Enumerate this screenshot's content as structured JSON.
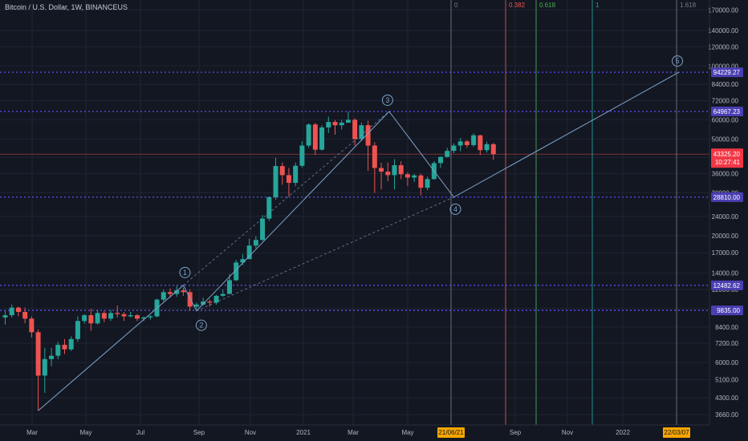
{
  "symbol_title": "Bitcoin / U.S. Dollar, 1W, BINANCEUS",
  "colors": {
    "background": "#131722",
    "grid": "#1f2433",
    "bull": "#26a69a",
    "bear": "#ef5350",
    "wave_line": "#7ea3c9",
    "level_line": "#5b4cf0",
    "level_label_bg": "#4a3fb3",
    "axis_text": "#b2b5be",
    "price_label_bg": "#f23645",
    "date_label_bg": "#f7a600"
  },
  "chart_data": {
    "type": "candlestick",
    "log_scale": true,
    "ylim": [
      3500,
      180000
    ],
    "y_ticks": [
      "170000.00",
      "140000.00",
      "120000.00",
      "100000.00",
      "84000.00",
      "72000.00",
      "60000.00",
      "50000.00",
      "42000.00",
      "36000.00",
      "30000.00",
      "24000.00",
      "20000.00",
      "17000.00",
      "14000.00",
      "12000.00",
      "10000.00",
      "8400.00",
      "7200.00",
      "6000.00",
      "5100.00",
      "4300.00",
      "3660.00"
    ],
    "x_ticks": [
      "Mar",
      "May",
      "Jul",
      "Sep",
      "Nov",
      "2021",
      "Mar",
      "May",
      "Sep",
      "Nov",
      "2022"
    ],
    "candles": [
      [
        9200,
        9800,
        8600,
        9400
      ],
      [
        9400,
        10400,
        9200,
        10100
      ],
      [
        10100,
        10200,
        9300,
        9700
      ],
      [
        9700,
        10100,
        8700,
        9100
      ],
      [
        9100,
        9300,
        7600,
        8000
      ],
      [
        8000,
        8200,
        3800,
        5300
      ],
      [
        5300,
        6900,
        4500,
        6200
      ],
      [
        6200,
        6900,
        5800,
        6400
      ],
      [
        6400,
        7300,
        6200,
        7100
      ],
      [
        7100,
        7500,
        6500,
        6800
      ],
      [
        6800,
        7700,
        6700,
        7500
      ],
      [
        7500,
        9300,
        7300,
        8900
      ],
      [
        8900,
        9500,
        8700,
        9400
      ],
      [
        9400,
        10000,
        8100,
        8700
      ],
      [
        8700,
        9900,
        8600,
        9600
      ],
      [
        9600,
        9800,
        8800,
        9100
      ],
      [
        9100,
        9900,
        8900,
        9600
      ],
      [
        9600,
        10300,
        9200,
        9500
      ],
      [
        9500,
        9700,
        8900,
        9300
      ],
      [
        9300,
        9700,
        9200,
        9400
      ],
      [
        9400,
        9500,
        8900,
        9100
      ],
      [
        9100,
        9300,
        8900,
        9200
      ],
      [
        9200,
        9400,
        9000,
        9300
      ],
      [
        9300,
        11000,
        9200,
        10900
      ],
      [
        10900,
        12000,
        10700,
        11700
      ],
      [
        11700,
        12100,
        11100,
        11500
      ],
      [
        11500,
        12400,
        11200,
        11900
      ],
      [
        11900,
        12200,
        11300,
        11700
      ],
      [
        11700,
        12000,
        9800,
        10200
      ],
      [
        10200,
        10600,
        10000,
        10400
      ],
      [
        10400,
        11100,
        10300,
        10700
      ],
      [
        10700,
        10900,
        10200,
        10600
      ],
      [
        10600,
        11400,
        10400,
        11300
      ],
      [
        11300,
        12000,
        11200,
        11500
      ],
      [
        11500,
        13900,
        11500,
        13100
      ],
      [
        13100,
        15900,
        13000,
        15500
      ],
      [
        15500,
        16800,
        15100,
        16000
      ],
      [
        16000,
        19400,
        16000,
        18200
      ],
      [
        18200,
        19900,
        17700,
        19200
      ],
      [
        19200,
        24300,
        19000,
        23500
      ],
      [
        23500,
        29000,
        23000,
        28800
      ],
      [
        28800,
        41900,
        28100,
        38700
      ],
      [
        38700,
        40000,
        32400,
        35500
      ],
      [
        35500,
        38000,
        29000,
        33000
      ],
      [
        33000,
        40000,
        32000,
        38800
      ],
      [
        38800,
        49000,
        38200,
        47000
      ],
      [
        47000,
        58000,
        46000,
        57400
      ],
      [
        57400,
        58300,
        43000,
        45200
      ],
      [
        45200,
        57000,
        44800,
        55800
      ],
      [
        55800,
        61800,
        53000,
        58800
      ],
      [
        58800,
        59900,
        52100,
        57000
      ],
      [
        57000,
        60000,
        54700,
        58400
      ],
      [
        58400,
        64800,
        58200,
        60000
      ],
      [
        60000,
        61000,
        47000,
        50000
      ],
      [
        50000,
        58500,
        49000,
        57000
      ],
      [
        57000,
        59500,
        37000,
        47000
      ],
      [
        47000,
        48500,
        30000,
        38000
      ],
      [
        38000,
        39900,
        31000,
        36700
      ],
      [
        36700,
        40000,
        33500,
        35500
      ],
      [
        35500,
        41300,
        31000,
        39000
      ],
      [
        39000,
        40500,
        34200,
        35800
      ],
      [
        35800,
        36500,
        32000,
        34700
      ],
      [
        34700,
        35900,
        33300,
        35400
      ],
      [
        35400,
        36000,
        29300,
        31500
      ],
      [
        31500,
        35000,
        30800,
        34200
      ],
      [
        34200,
        40500,
        34000,
        39800
      ],
      [
        39800,
        42400,
        38000,
        42200
      ],
      [
        42200,
        46000,
        42000,
        44700
      ],
      [
        44700,
        48000,
        43700,
        47000
      ],
      [
        47000,
        50500,
        44500,
        48900
      ],
      [
        48900,
        49500,
        46000,
        47200
      ],
      [
        47200,
        52800,
        46500,
        51800
      ],
      [
        51800,
        52000,
        43000,
        45000
      ],
      [
        45000,
        48800,
        44000,
        47600
      ],
      [
        47600,
        48200,
        41000,
        43325
      ]
    ],
    "levels": [
      {
        "label": "94229.27",
        "value": 94229.27
      },
      {
        "label": "64967.23",
        "value": 64967.23
      },
      {
        "label": "28810.00",
        "value": 28810
      },
      {
        "label": "12482.62",
        "value": 12482.62
      },
      {
        "label": "9835.00",
        "value": 9835
      }
    ],
    "current_price": {
      "label": "43325.20",
      "countdown": "10:27:41",
      "value": 43325.2
    },
    "wave_labels": [
      "1",
      "2",
      "3",
      "4",
      "5"
    ],
    "fib_time": [
      "0",
      "0.382",
      "0.618",
      "1",
      "1.618"
    ],
    "date_labels": [
      "21/06/21",
      "22/03/07"
    ]
  }
}
